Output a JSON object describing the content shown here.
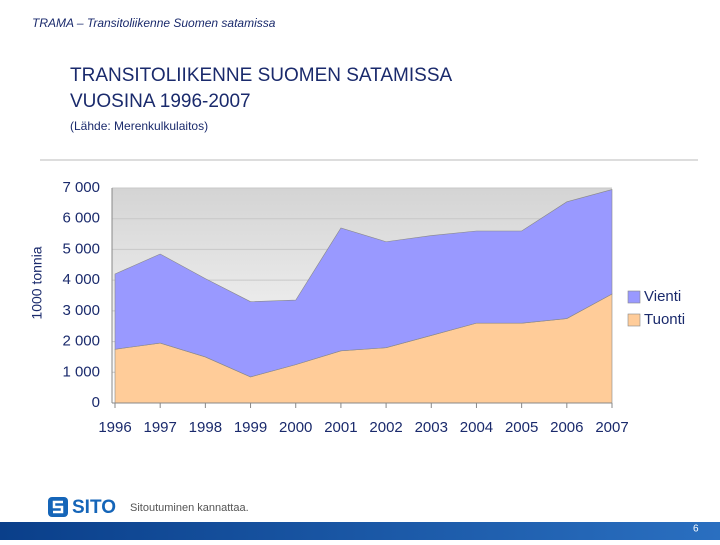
{
  "slide": {
    "header": "TRAMA – Transitoliikenne Suomen satamissa",
    "title": [
      "TRANSITOLIIKENNE SUOMEN SATAMISSA",
      "VUOSINA 1996-2007"
    ],
    "source": "(Lähde: Merenkulkulaitos)"
  },
  "footer": {
    "logo": "SITO",
    "tagline": "Sitoutuminen kannattaa.",
    "page": "6"
  },
  "chart_data": {
    "type": "area",
    "stacked": true,
    "ylabel": "1000 tonnia",
    "categories": [
      "1996",
      "1997",
      "1998",
      "1999",
      "2000",
      "2001",
      "2002",
      "2003",
      "2004",
      "2005",
      "2006",
      "2007"
    ],
    "series": [
      {
        "name": "Tuonti",
        "color": "#ffcc99",
        "values": [
          1750,
          1950,
          1500,
          850,
          1250,
          1700,
          1800,
          2200,
          2600,
          2600,
          2750,
          3550
        ]
      },
      {
        "name": "Vienti",
        "color": "#9999ff",
        "values": [
          2450,
          2900,
          2550,
          2450,
          2100,
          4000,
          3450,
          3250,
          3000,
          3000,
          3800,
          3400
        ]
      }
    ],
    "ylim": [
      0,
      7000
    ],
    "yticks": [
      0,
      {
        "value": 1000,
        "label": "1 000"
      },
      {
        "value": 2000,
        "label": "2 000"
      },
      {
        "value": 3000,
        "label": "3 000"
      },
      {
        "value": 4000,
        "label": "4 000"
      },
      {
        "value": 5000,
        "label": "5 000"
      },
      {
        "value": 6000,
        "label": "6 000"
      },
      {
        "value": 7000,
        "label": "7 000"
      }
    ],
    "grid": true,
    "legend": "right"
  }
}
